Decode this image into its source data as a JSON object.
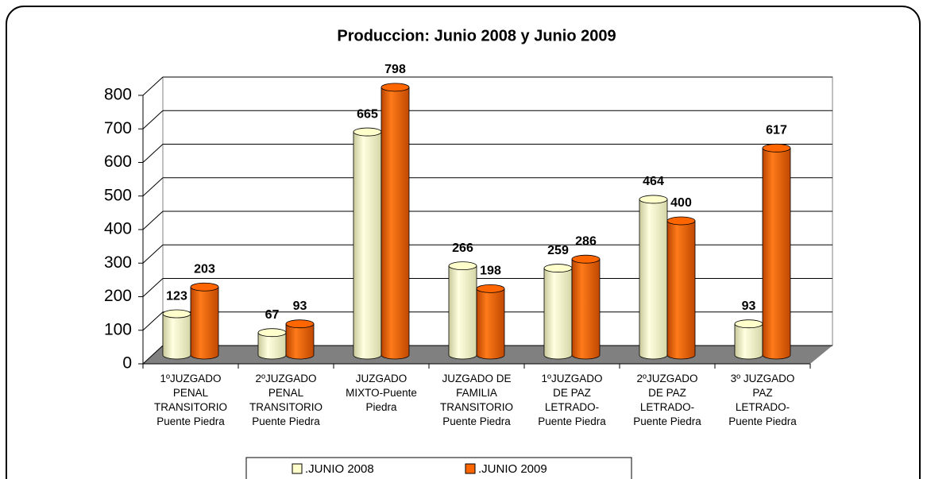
{
  "chart_data": {
    "type": "bar",
    "title": "Produccion: Junio 2008 y Junio 2009",
    "categories": [
      "1ºJUZGADO\nPENAL\nTRANSITORIO\nPuente Piedra",
      "2ºJUZGADO\nPENAL\nTRANSITORIO\nPuente Piedra",
      "JUZGADO\nMIXTO-Puente\nPiedra",
      "JUZGADO DE\nFAMILIA\nTRANSITORIO\nPuente Piedra",
      "1ºJUZGADO\nDE PAZ\nLETRADO-\nPuente Piedra",
      "2ºJUZGADO\nDE PAZ\nLETRADO-\nPuente Piedra",
      "3º JUZGADO\nPAZ\nLETRADO-\nPuente Piedra"
    ],
    "series": [
      {
        "name": ".JUNIO 2008",
        "color": "#ffffcc",
        "values": [
          123,
          67,
          665,
          266,
          259,
          464,
          93
        ]
      },
      {
        "name": ".JUNIO 2009",
        "color": "#ff6600",
        "values": [
          203,
          93,
          798,
          198,
          286,
          400,
          617
        ]
      }
    ],
    "ylim": [
      0,
      800
    ],
    "yticks": [
      0,
      100,
      200,
      300,
      400,
      500,
      600,
      700,
      800
    ],
    "grid": true,
    "legend": "bottom"
  }
}
